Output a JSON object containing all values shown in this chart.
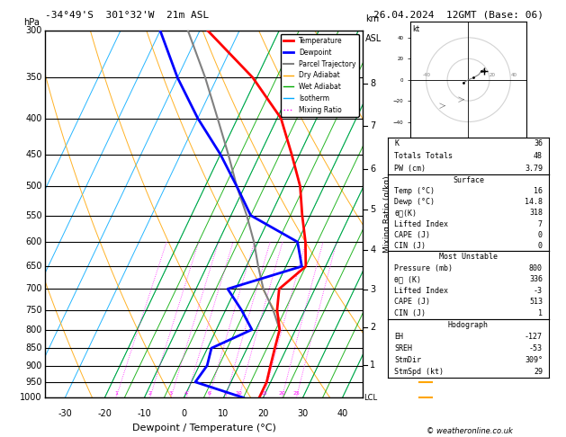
{
  "title_left": "-34°49'S  301°32'W  21m ASL",
  "title_right": "26.04.2024  12GMT (Base: 06)",
  "ylabel_left": "hPa",
  "ylabel_right_km": "km\nASL",
  "ylabel_right_mixing": "Mixing Ratio (g/kg)",
  "xlabel": "Dewpoint / Temperature (°C)",
  "pressure_levels": [
    300,
    350,
    400,
    450,
    500,
    550,
    600,
    650,
    700,
    750,
    800,
    850,
    900,
    950,
    1000
  ],
  "km_labels": [
    8,
    7,
    6,
    5,
    4,
    3,
    2,
    1
  ],
  "km_pressures": [
    357,
    410,
    472,
    540,
    616,
    701,
    795,
    898
  ],
  "mixing_ratio_values": [
    1,
    2,
    3,
    4,
    6,
    8,
    10,
    15,
    20,
    25
  ],
  "x_ticks": [
    -30,
    -20,
    -10,
    0,
    10,
    20,
    30,
    40
  ],
  "x_min": -35,
  "x_max": 45,
  "temp_profile_pressure": [
    1000,
    950,
    900,
    850,
    800,
    750,
    700,
    650,
    600,
    550,
    500,
    450,
    400,
    350,
    300
  ],
  "temp_profile_temp": [
    19,
    19,
    18,
    17,
    16,
    13,
    11,
    15,
    12,
    8,
    4,
    -2,
    -9,
    -21,
    -38
  ],
  "dewp_profile_pressure": [
    1000,
    950,
    900,
    850,
    800,
    750,
    700,
    650,
    600,
    550,
    500,
    450,
    400,
    350,
    300
  ],
  "dewp_profile_temp": [
    15,
    1,
    2,
    1,
    9,
    4,
    -2,
    14,
    10,
    -5,
    -12,
    -20,
    -30,
    -40,
    -50
  ],
  "parcel_pressure": [
    800,
    750,
    700,
    650,
    600,
    550,
    500,
    450,
    400,
    350,
    300
  ],
  "parcel_temp": [
    16,
    12,
    7,
    3,
    -1,
    -6,
    -12,
    -18,
    -25,
    -33,
    -43
  ],
  "temp_color": "#ff0000",
  "dewp_color": "#0000ff",
  "parcel_color": "#808080",
  "dry_adiabat_color": "#ffa500",
  "wet_adiabat_color": "#00aa00",
  "isotherm_color": "#00aaff",
  "mixing_ratio_color": "#ff00ff",
  "background_color": "#ffffff",
  "info_K": 36,
  "info_TT": 48,
  "info_PW": 3.79,
  "surf_temp": 16,
  "surf_dewp": 14.8,
  "surf_theta": 318,
  "surf_li": 7,
  "surf_cape": 0,
  "surf_cin": 0,
  "mu_pressure": 800,
  "mu_theta": 336,
  "mu_li": -3,
  "mu_cape": 513,
  "mu_cin": 1,
  "hodo_eh": -127,
  "hodo_sreh": -53,
  "hodo_stmdir": "309°",
  "hodo_stmspd": 29,
  "copyright": "© weatheronline.co.uk",
  "legend_entries": [
    "Temperature",
    "Dewpoint",
    "Parcel Trajectory",
    "Dry Adiabat",
    "Wet Adiabat",
    "Isotherm",
    "Mixing Ratio"
  ],
  "legend_colors": [
    "#ff0000",
    "#0000ff",
    "#808080",
    "#ffa500",
    "#00aa00",
    "#00aaff",
    "#ff00ff"
  ],
  "legend_styles": [
    "solid",
    "solid",
    "solid",
    "solid",
    "solid",
    "solid",
    "dotted"
  ],
  "legend_widths": [
    2,
    2,
    1.5,
    1,
    1,
    1,
    1
  ]
}
